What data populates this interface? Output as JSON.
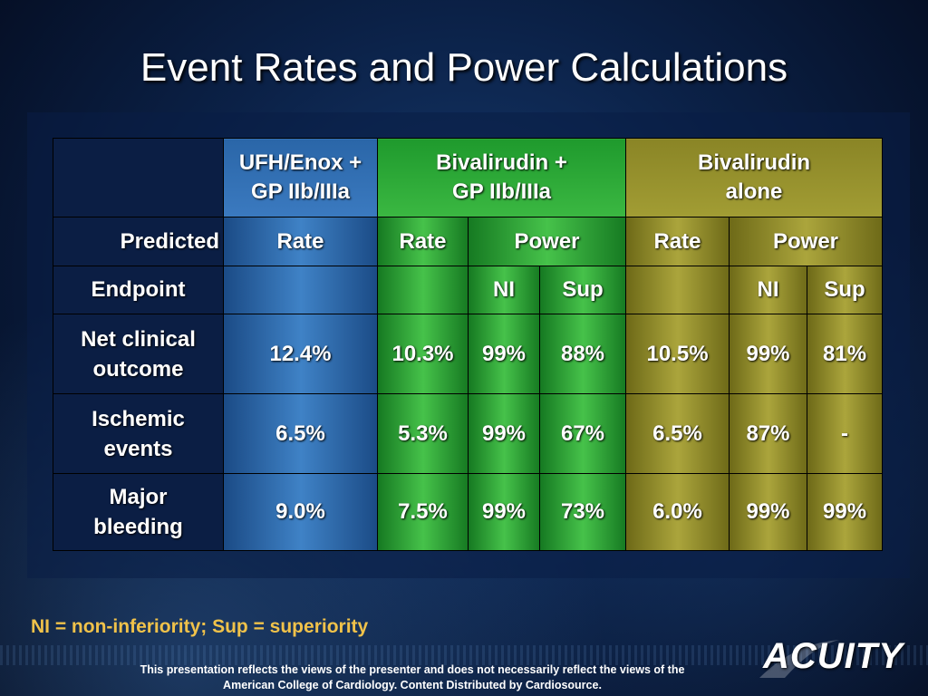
{
  "title": "Event Rates and Power Calculations",
  "table": {
    "group_headers": [
      {
        "line1": "UFH/Enox +",
        "line2": "GP IIb/IIIa"
      },
      {
        "line1": "Bivalirudin +",
        "line2": "GP IIb/IIIa"
      },
      {
        "line1": "Bivalirudin",
        "line2": "alone"
      }
    ],
    "predicted_label": "Predicted",
    "sub_headers": [
      "Rate",
      "Rate",
      "Power",
      "Rate",
      "Power"
    ],
    "endpoint_label": "Endpoint",
    "power_headers": [
      "NI",
      "Sup",
      "NI",
      "Sup"
    ],
    "rows": [
      {
        "label1": "Net clinical",
        "label2": "outcome",
        "values": [
          "12.4%",
          "10.3%",
          "99%",
          "88%",
          "10.5%",
          "99%",
          "81%"
        ]
      },
      {
        "label1": "Ischemic",
        "label2": "events",
        "values": [
          "6.5%",
          "5.3%",
          "99%",
          "67%",
          "6.5%",
          "87%",
          "-"
        ]
      },
      {
        "label1": "Major",
        "label2": "bleeding",
        "values": [
          "9.0%",
          "7.5%",
          "99%",
          "73%",
          "6.0%",
          "99%",
          "99%"
        ]
      }
    ]
  },
  "footnote": "NI = non-inferiority; Sup = superiority",
  "disclaimer_line1": "This presentation reflects the views of the presenter and does not necessarily reflect the views of the",
  "disclaimer_line2": "American College of Cardiology. Content Distributed by Cardiosource.",
  "logo_text": "ACUITY",
  "colors": {
    "gold": "#f0c24a",
    "blue": "#3f82c6",
    "green": "#46c24a",
    "olive": "#aba53c"
  }
}
